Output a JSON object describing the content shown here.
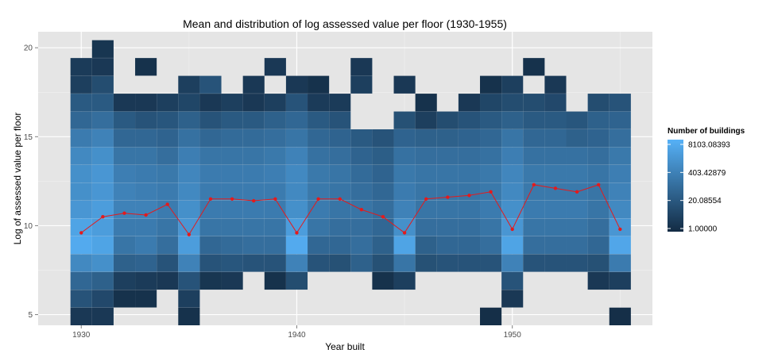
{
  "chart_data": {
    "type": "heatmap",
    "title": "Mean and distribution of log assessed value per floor (1930-1955)",
    "xlabel": "Year built",
    "ylabel": "Log of assessed value per floor",
    "xlim": [
      1928,
      1956.5
    ],
    "ylim": [
      4.4,
      20.9
    ],
    "x_ticks": [
      1930,
      1940,
      1950
    ],
    "y_ticks": [
      5,
      10,
      15,
      20
    ],
    "grid": true,
    "legend": {
      "title": "Number of buildings",
      "placement": "right",
      "scale": "log",
      "labels": [
        "8103.08393",
        "403.42879",
        "20.08554",
        "1.00000"
      ],
      "values": [
        8103.08393,
        403.42879,
        20.08554,
        1.0
      ],
      "color_low": "#132B43",
      "color_high": "#56B1F7"
    },
    "heat": {
      "x_start": 1930,
      "y_start": 5,
      "bin_width_x": 1,
      "bin_height_y": 0.75,
      "note": "level = log(count)/log(8103.08) ; null = no buildings",
      "years": [
        1930,
        1931,
        1932,
        1933,
        1934,
        1935,
        1936,
        1937,
        1938,
        1939,
        1940,
        1941,
        1942,
        1943,
        1944,
        1945,
        1946,
        1947,
        1948,
        1949,
        1950,
        1951,
        1952,
        1953,
        1954,
        1955
      ],
      "levels": [
        [
          0.1,
          0.1,
          null,
          null,
          null,
          0.05,
          null,
          null,
          null,
          null,
          null,
          null,
          null,
          null,
          null,
          null,
          null,
          null,
          null,
          0.03,
          null,
          null,
          null,
          null,
          null,
          0.03
        ],
        [
          0.3,
          0.22,
          0.05,
          0.05,
          null,
          0.15,
          null,
          null,
          null,
          null,
          null,
          null,
          null,
          null,
          null,
          null,
          null,
          null,
          null,
          null,
          0.1,
          null,
          null,
          null,
          null,
          null
        ],
        [
          0.45,
          0.4,
          0.15,
          0.12,
          0.1,
          0.3,
          0.08,
          0.1,
          null,
          0.05,
          0.25,
          null,
          null,
          null,
          0.05,
          0.15,
          null,
          null,
          null,
          null,
          0.3,
          null,
          null,
          null,
          0.1,
          0.15
        ],
        [
          0.7,
          0.75,
          0.4,
          0.42,
          0.3,
          0.65,
          0.3,
          0.32,
          0.3,
          0.3,
          0.65,
          0.3,
          0.28,
          0.4,
          0.28,
          0.55,
          0.28,
          0.3,
          0.3,
          0.3,
          0.65,
          0.3,
          0.3,
          0.3,
          0.28,
          0.6
        ],
        [
          0.95,
          0.9,
          0.55,
          0.6,
          0.5,
          0.85,
          0.45,
          0.48,
          0.5,
          0.5,
          0.95,
          0.45,
          0.45,
          0.5,
          0.4,
          0.9,
          0.4,
          0.45,
          0.45,
          0.5,
          0.9,
          0.5,
          0.5,
          0.5,
          0.45,
          0.92
        ],
        [
          0.9,
          0.85,
          0.6,
          0.6,
          0.55,
          0.8,
          0.55,
          0.55,
          0.55,
          0.55,
          0.85,
          0.55,
          0.5,
          0.5,
          0.45,
          0.75,
          0.5,
          0.5,
          0.5,
          0.55,
          0.8,
          0.55,
          0.55,
          0.55,
          0.5,
          0.8
        ],
        [
          0.8,
          0.85,
          0.65,
          0.65,
          0.6,
          0.75,
          0.6,
          0.6,
          0.6,
          0.6,
          0.75,
          0.6,
          0.55,
          0.55,
          0.5,
          0.65,
          0.55,
          0.55,
          0.55,
          0.6,
          0.75,
          0.6,
          0.6,
          0.6,
          0.55,
          0.7
        ],
        [
          0.75,
          0.8,
          0.65,
          0.62,
          0.6,
          0.7,
          0.6,
          0.6,
          0.6,
          0.6,
          0.7,
          0.58,
          0.55,
          0.5,
          0.45,
          0.6,
          0.55,
          0.55,
          0.55,
          0.58,
          0.7,
          0.58,
          0.58,
          0.58,
          0.55,
          0.65
        ],
        [
          0.75,
          0.8,
          0.62,
          0.6,
          0.58,
          0.68,
          0.6,
          0.6,
          0.6,
          0.62,
          0.7,
          0.58,
          0.55,
          0.48,
          0.42,
          0.58,
          0.55,
          0.55,
          0.55,
          0.58,
          0.68,
          0.58,
          0.58,
          0.58,
          0.55,
          0.62
        ],
        [
          0.7,
          0.75,
          0.55,
          0.55,
          0.5,
          0.62,
          0.55,
          0.55,
          0.55,
          0.58,
          0.65,
          0.52,
          0.5,
          0.42,
          0.38,
          0.52,
          0.5,
          0.5,
          0.5,
          0.52,
          0.62,
          0.52,
          0.52,
          0.52,
          0.5,
          0.58
        ],
        [
          0.6,
          0.65,
          0.45,
          0.45,
          0.42,
          0.52,
          0.45,
          0.48,
          0.48,
          0.5,
          0.55,
          0.45,
          0.42,
          0.35,
          0.3,
          0.42,
          0.4,
          0.4,
          0.42,
          0.45,
          0.55,
          0.45,
          0.45,
          0.4,
          0.42,
          0.5
        ],
        [
          0.45,
          0.5,
          0.35,
          0.3,
          0.32,
          0.4,
          0.3,
          0.35,
          0.35,
          0.4,
          0.45,
          0.35,
          0.3,
          null,
          null,
          0.28,
          0.15,
          0.25,
          0.3,
          0.35,
          0.4,
          0.35,
          0.35,
          0.32,
          0.4,
          0.42
        ],
        [
          0.35,
          0.35,
          0.1,
          0.1,
          0.15,
          0.2,
          0.1,
          0.15,
          0.1,
          0.15,
          0.3,
          0.12,
          0.12,
          null,
          null,
          null,
          0.05,
          null,
          0.1,
          0.2,
          0.25,
          0.25,
          0.22,
          null,
          0.25,
          0.3
        ],
        [
          0.15,
          0.25,
          null,
          null,
          null,
          0.15,
          0.3,
          null,
          0.1,
          null,
          0.1,
          0.05,
          null,
          0.15,
          null,
          0.1,
          null,
          null,
          null,
          0.05,
          0.15,
          null,
          0.1,
          null,
          null,
          null
        ],
        [
          0.12,
          0.1,
          null,
          0.05,
          null,
          null,
          null,
          null,
          null,
          0.1,
          null,
          null,
          null,
          0.1,
          null,
          null,
          null,
          null,
          null,
          null,
          null,
          0.05,
          null,
          null,
          null,
          null
        ],
        [
          null,
          0.08,
          null,
          null,
          null,
          null,
          null,
          null,
          null,
          null,
          null,
          null,
          null,
          null,
          null,
          null,
          null,
          null,
          null,
          null,
          null,
          null,
          null,
          null,
          null,
          null
        ]
      ]
    },
    "series": [
      {
        "name": "",
        "color": "#E41A1C",
        "x": [
          1930,
          1931,
          1932,
          1933,
          1934,
          1935,
          1936,
          1937,
          1938,
          1939,
          1940,
          1941,
          1942,
          1943,
          1944,
          1945,
          1946,
          1947,
          1948,
          1949,
          1950,
          1951,
          1952,
          1953,
          1954,
          1955
        ],
        "y": [
          9.6,
          10.5,
          10.7,
          10.6,
          11.2,
          9.5,
          11.5,
          11.5,
          11.4,
          11.5,
          9.6,
          11.5,
          11.5,
          10.9,
          10.5,
          9.6,
          11.5,
          11.6,
          11.7,
          11.9,
          9.8,
          12.3,
          12.1,
          11.9,
          12.3,
          9.8
        ]
      }
    ]
  }
}
